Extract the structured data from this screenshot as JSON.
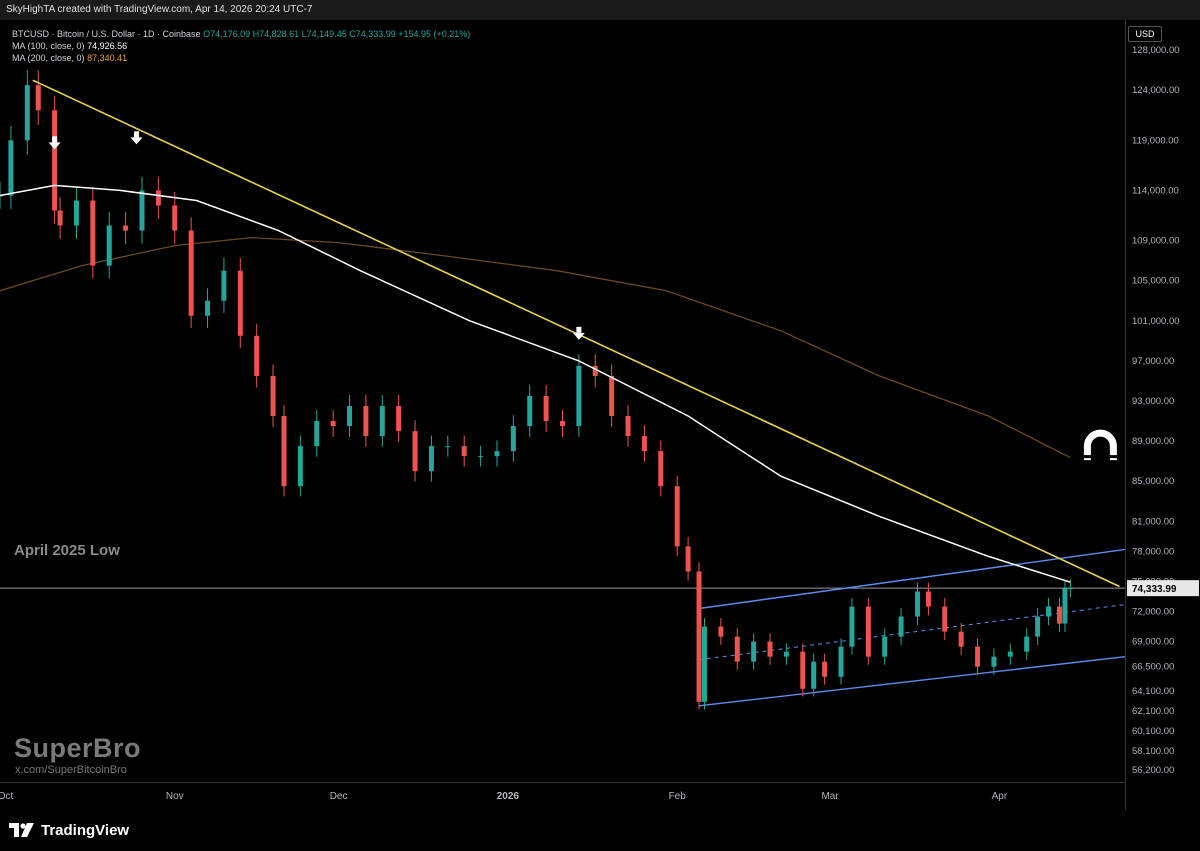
{
  "header": {
    "credit": "SkyHighTA created with TradingView.com, Apr 14, 2026 20:24 UTC-7"
  },
  "legend": {
    "symbol_line": "BTCUSD · Bitcoin / U.S. Dollar · 1D · Coinbase",
    "ohlc": "O74,176.09  H74,828.61  L74,149.45  C74,333.99  +154.95 (+0.21%)",
    "ma100_label": "MA (100, close, 0)",
    "ma100_value": "74,926.56",
    "ma200_label": "MA (200, close, 0)",
    "ma200_value": "87,340.41"
  },
  "currency": "USD",
  "annotation": "April 2025 Low",
  "watermark": {
    "brand": "SuperBro",
    "handle": "x.com/SuperBitcoinBro"
  },
  "footer": {
    "logo_text": "TradingView"
  },
  "colors": {
    "up": "#26a69a",
    "down": "#ef5350",
    "ma100": "#ffffff",
    "ma200": "#6b4a22",
    "trendline": "#e8d44a",
    "channel": "#5b8def",
    "background": "#000000"
  },
  "chart_data": {
    "type": "candlestick",
    "title": "BTCUSD · Bitcoin / U.S. Dollar · 1D · Coinbase",
    "x_range": [
      "2025-09-30",
      "2026-04-24"
    ],
    "ylim": [
      55000,
      131000
    ],
    "y_ticks": [
      128000,
      124000,
      119000,
      114000,
      109000,
      105000,
      101000,
      97000,
      93000,
      89000,
      85000,
      81000,
      78000,
      75000,
      72000,
      69000,
      66500,
      64100,
      62100,
      60100,
      58100,
      56200
    ],
    "y_tick_labels": [
      "128,000.00",
      "124,000.00",
      "119,000.00",
      "114,000.00",
      "109,000.00",
      "105,000.00",
      "101,000.00",
      "97,000.00",
      "93,000.00",
      "89,000.00",
      "85,000.00",
      "81,000.00",
      "78,000.00",
      "75,000.00",
      "72,000.00",
      "69,000.00",
      "66,500.00",
      "64,100.00",
      "62,100.00",
      "60,100.00",
      "58,100.00",
      "56,200.00"
    ],
    "x_ticks": [
      {
        "label": "Oct",
        "date": "2025-10-01"
      },
      {
        "label": "Nov",
        "date": "2025-11-01"
      },
      {
        "label": "Dec",
        "date": "2025-12-01"
      },
      {
        "label": "2026",
        "date": "2026-01-01"
      },
      {
        "label": "Feb",
        "date": "2026-02-01"
      },
      {
        "label": "Mar",
        "date": "2026-03-01"
      },
      {
        "label": "Apr",
        "date": "2026-04-01"
      }
    ],
    "last_price": 74333.99,
    "last_price_label": "74,333.99",
    "horizontal_line": {
      "price": 74333.99
    },
    "closes": [
      {
        "date": "2025-09-30",
        "close": 113500
      },
      {
        "date": "2025-10-02",
        "close": 119000
      },
      {
        "date": "2025-10-05",
        "close": 124500
      },
      {
        "date": "2025-10-07",
        "close": 122000
      },
      {
        "date": "2025-10-10",
        "close": 112000
      },
      {
        "date": "2025-10-11",
        "close": 110500
      },
      {
        "date": "2025-10-14",
        "close": 113000
      },
      {
        "date": "2025-10-17",
        "close": 106500
      },
      {
        "date": "2025-10-20",
        "close": 110500
      },
      {
        "date": "2025-10-23",
        "close": 110000
      },
      {
        "date": "2025-10-26",
        "close": 114000
      },
      {
        "date": "2025-10-29",
        "close": 112500
      },
      {
        "date": "2025-11-01",
        "close": 110000
      },
      {
        "date": "2025-11-04",
        "close": 101500
      },
      {
        "date": "2025-11-07",
        "close": 103000
      },
      {
        "date": "2025-11-10",
        "close": 106000
      },
      {
        "date": "2025-11-13",
        "close": 99500
      },
      {
        "date": "2025-11-16",
        "close": 95500
      },
      {
        "date": "2025-11-19",
        "close": 91500
      },
      {
        "date": "2025-11-21",
        "close": 84500
      },
      {
        "date": "2025-11-24",
        "close": 88500
      },
      {
        "date": "2025-11-27",
        "close": 91000
      },
      {
        "date": "2025-11-30",
        "close": 90500
      },
      {
        "date": "2025-12-03",
        "close": 92500
      },
      {
        "date": "2025-12-06",
        "close": 89500
      },
      {
        "date": "2025-12-09",
        "close": 92500
      },
      {
        "date": "2025-12-12",
        "close": 90000
      },
      {
        "date": "2025-12-15",
        "close": 86000
      },
      {
        "date": "2025-12-18",
        "close": 88500
      },
      {
        "date": "2025-12-21",
        "close": 88500
      },
      {
        "date": "2025-12-24",
        "close": 87500
      },
      {
        "date": "2025-12-27",
        "close": 87500
      },
      {
        "date": "2025-12-30",
        "close": 88000
      },
      {
        "date": "2026-01-02",
        "close": 90500
      },
      {
        "date": "2026-01-05",
        "close": 93500
      },
      {
        "date": "2026-01-08",
        "close": 91000
      },
      {
        "date": "2026-01-11",
        "close": 90500
      },
      {
        "date": "2026-01-14",
        "close": 96500
      },
      {
        "date": "2026-01-17",
        "close": 95500
      },
      {
        "date": "2026-01-20",
        "close": 91500
      },
      {
        "date": "2026-01-23",
        "close": 89500
      },
      {
        "date": "2026-01-26",
        "close": 88000
      },
      {
        "date": "2026-01-29",
        "close": 84500
      },
      {
        "date": "2026-02-01",
        "close": 78500
      },
      {
        "date": "2026-02-03",
        "close": 76000
      },
      {
        "date": "2026-02-05",
        "close": 63000
      },
      {
        "date": "2026-02-06",
        "close": 70500
      },
      {
        "date": "2026-02-09",
        "close": 69500
      },
      {
        "date": "2026-02-12",
        "close": 67000
      },
      {
        "date": "2026-02-15",
        "close": 69000
      },
      {
        "date": "2026-02-18",
        "close": 67500
      },
      {
        "date": "2026-02-21",
        "close": 68000
      },
      {
        "date": "2026-02-24",
        "close": 64300
      },
      {
        "date": "2026-02-26",
        "close": 67000
      },
      {
        "date": "2026-02-28",
        "close": 65500
      },
      {
        "date": "2026-03-03",
        "close": 68500
      },
      {
        "date": "2026-03-05",
        "close": 72500
      },
      {
        "date": "2026-03-08",
        "close": 67500
      },
      {
        "date": "2026-03-11",
        "close": 69500
      },
      {
        "date": "2026-03-14",
        "close": 71500
      },
      {
        "date": "2026-03-17",
        "close": 74000
      },
      {
        "date": "2026-03-19",
        "close": 72500
      },
      {
        "date": "2026-03-22",
        "close": 70000
      },
      {
        "date": "2026-03-25",
        "close": 68500
      },
      {
        "date": "2026-03-28",
        "close": 66500
      },
      {
        "date": "2026-03-31",
        "close": 67500
      },
      {
        "date": "2026-04-03",
        "close": 68000
      },
      {
        "date": "2026-04-06",
        "close": 69500
      },
      {
        "date": "2026-04-08",
        "close": 71500
      },
      {
        "date": "2026-04-10",
        "close": 72500
      },
      {
        "date": "2026-04-12",
        "close": 70800
      },
      {
        "date": "2026-04-13",
        "close": 74300
      },
      {
        "date": "2026-04-14",
        "close": 74333.99
      }
    ],
    "ma100": [
      {
        "date": "2025-09-30",
        "value": 113500
      },
      {
        "date": "2025-10-10",
        "value": 114500
      },
      {
        "date": "2025-10-22",
        "value": 114000
      },
      {
        "date": "2025-11-05",
        "value": 113000
      },
      {
        "date": "2025-11-20",
        "value": 110000
      },
      {
        "date": "2025-12-05",
        "value": 106000
      },
      {
        "date": "2025-12-25",
        "value": 101000
      },
      {
        "date": "2026-01-14",
        "value": 97000
      },
      {
        "date": "2026-02-03",
        "value": 91500
      },
      {
        "date": "2026-02-20",
        "value": 85500
      },
      {
        "date": "2026-03-10",
        "value": 81500
      },
      {
        "date": "2026-03-30",
        "value": 77500
      },
      {
        "date": "2026-04-14",
        "value": 74926.56
      }
    ],
    "ma200": [
      {
        "date": "2025-09-30",
        "value": 104000
      },
      {
        "date": "2025-10-15",
        "value": 106500
      },
      {
        "date": "2025-11-01",
        "value": 108500
      },
      {
        "date": "2025-11-15",
        "value": 109300
      },
      {
        "date": "2025-12-01",
        "value": 108800
      },
      {
        "date": "2025-12-20",
        "value": 107500
      },
      {
        "date": "2026-01-10",
        "value": 106000
      },
      {
        "date": "2026-01-30",
        "value": 104000
      },
      {
        "date": "2026-02-20",
        "value": 100000
      },
      {
        "date": "2026-03-10",
        "value": 95500
      },
      {
        "date": "2026-03-30",
        "value": 91500
      },
      {
        "date": "2026-04-14",
        "value": 87340.41
      }
    ],
    "trendline": [
      {
        "date": "2025-10-06",
        "value": 125000
      },
      {
        "date": "2026-04-23",
        "value": 74500
      }
    ],
    "channel": {
      "upper": [
        {
          "date": "2026-02-05",
          "value": 72300
        },
        {
          "date": "2026-04-24",
          "value": 78200
        }
      ],
      "middle": [
        {
          "date": "2026-02-05",
          "value": 67200
        },
        {
          "date": "2026-04-24",
          "value": 72700
        }
      ],
      "lower": [
        {
          "date": "2026-02-05",
          "value": 62600
        },
        {
          "date": "2026-04-24",
          "value": 67500
        }
      ]
    },
    "arrows": [
      {
        "date": "2025-10-10",
        "value": 118500
      },
      {
        "date": "2025-10-25",
        "value": 119000
      },
      {
        "date": "2026-01-14",
        "value": 99500
      }
    ],
    "magnet_icon": {
      "date": "2026-04-14",
      "value": 88500
    }
  }
}
